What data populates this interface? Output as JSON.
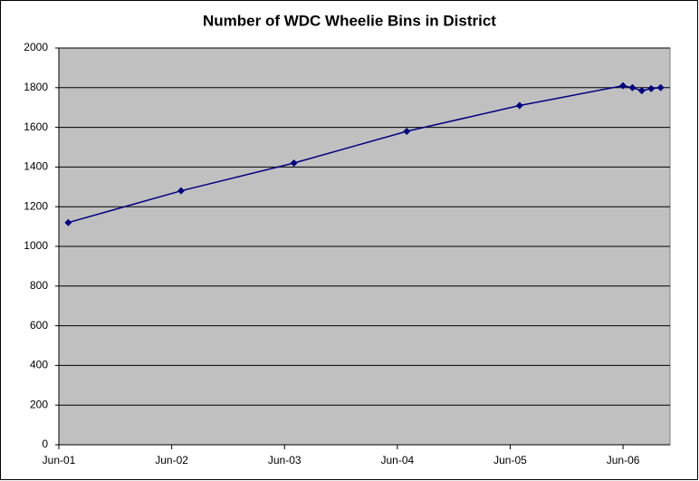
{
  "chart_data": {
    "type": "line",
    "title": "Number of WDC Wheelie Bins in District",
    "x": [
      "Jul-01",
      "Jul-02",
      "Jul-03",
      "Jul-04",
      "Jul-05",
      "Jun-06",
      "Jul-06",
      "Aug-06",
      "Sep-06",
      "Oct-06"
    ],
    "series": [
      {
        "name": "Wheelie Bins",
        "color": "#000080",
        "values": [
          1120,
          1280,
          1420,
          1580,
          1710,
          1810,
          1800,
          1785,
          1795,
          1800
        ]
      }
    ],
    "xlim": [
      "Jun-01",
      "Nov-06"
    ],
    "xticks": [
      "Jun-01",
      "Jun-02",
      "Jun-03",
      "Jun-04",
      "Jun-05",
      "Jun-06"
    ],
    "ylim": [
      0,
      2000
    ],
    "yticks": [
      0,
      200,
      400,
      600,
      800,
      1000,
      1200,
      1400,
      1600,
      1800,
      2000
    ],
    "grid": true,
    "plot_background": "#c0c0c0"
  }
}
